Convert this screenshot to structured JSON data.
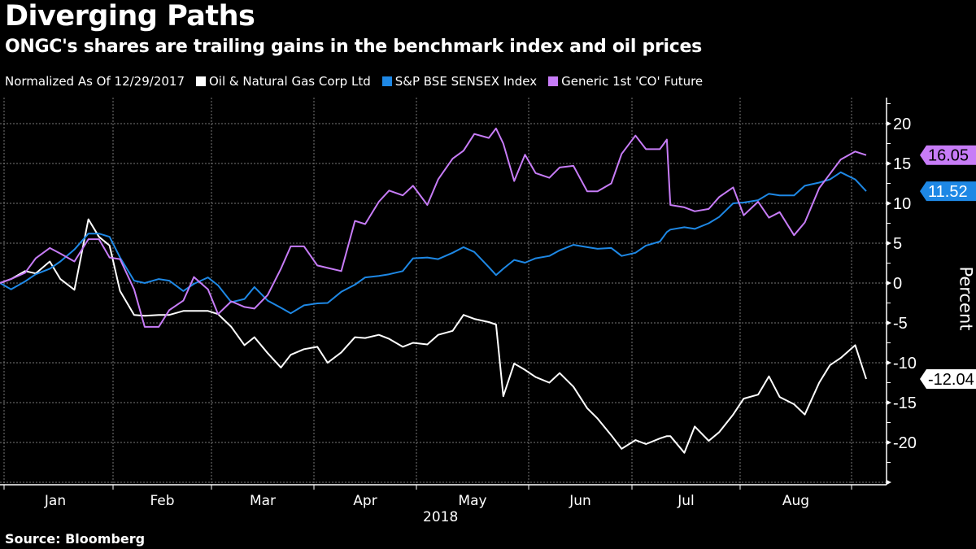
{
  "header": {
    "title": "Diverging Paths",
    "subtitle": "ONGC's shares are trailing gains in the benchmark index and oil prices"
  },
  "footer": {
    "source": "Source: Bloomberg"
  },
  "chart_data": {
    "type": "line",
    "title": "Diverging Paths",
    "subtitle": "ONGC's shares are trailing gains in the benchmark index and oil prices",
    "legend_note": "Normalized As Of 12/29/2017",
    "ylabel": "Percent",
    "ylim": [
      -25,
      23
    ],
    "yticks": [
      20,
      15,
      10,
      5,
      0,
      -5,
      -10,
      -15,
      -20
    ],
    "ytick_labels": [
      "20",
      "15",
      "10",
      "5",
      "0",
      "-5",
      "-10",
      "-15",
      "-20"
    ],
    "y_axis_side": "right",
    "xtick_labels": [
      "Jan",
      "Feb",
      "Mar",
      "Apr",
      "May",
      "Jun",
      "Jul",
      "Aug"
    ],
    "xlabel_year": "2018",
    "grid": true,
    "legend_placement": "top-left",
    "x": [
      "2017-12-29",
      "2018-01-03",
      "2018-01-07",
      "2018-01-10",
      "2018-01-14",
      "2018-01-17",
      "2018-01-21",
      "2018-01-25",
      "2018-01-28",
      "2018-01-31",
      "2018-02-03",
      "2018-02-07",
      "2018-02-10",
      "2018-02-14",
      "2018-02-17",
      "2018-02-21",
      "2018-02-24",
      "2018-02-28",
      "2018-03-03",
      "2018-03-07",
      "2018-03-11",
      "2018-03-14",
      "2018-03-18",
      "2018-03-22",
      "2018-03-25",
      "2018-03-29",
      "2018-04-02",
      "2018-04-05",
      "2018-04-09",
      "2018-04-13",
      "2018-04-16",
      "2018-04-20",
      "2018-04-23",
      "2018-04-27",
      "2018-04-30",
      "2018-05-04",
      "2018-05-07",
      "2018-05-11",
      "2018-05-14",
      "2018-05-17",
      "2018-05-21",
      "2018-05-23",
      "2018-05-25",
      "2018-05-28",
      "2018-05-31",
      "2018-06-03",
      "2018-06-07",
      "2018-06-10",
      "2018-06-14",
      "2018-06-18",
      "2018-06-21",
      "2018-06-25",
      "2018-06-28",
      "2018-07-02",
      "2018-07-05",
      "2018-07-09",
      "2018-07-11",
      "2018-07-12",
      "2018-07-16",
      "2018-07-19",
      "2018-07-23",
      "2018-07-26",
      "2018-07-30",
      "2018-08-02",
      "2018-08-06",
      "2018-08-09",
      "2018-08-12",
      "2018-08-16",
      "2018-08-19",
      "2018-08-23",
      "2018-08-26",
      "2018-08-29",
      "2018-09-02",
      "2018-09-05"
    ],
    "series": [
      {
        "name": "Oil & Natural Gas Corp Ltd",
        "color": "#ffffff",
        "last_label": "-12.04",
        "label_text_color": "#000000",
        "values": [
          0,
          0.5,
          1.5,
          1.2,
          2.7,
          0.5,
          -0.85,
          8.0,
          5.8,
          4.7,
          -1.0,
          -4.0,
          -4.1,
          -4.0,
          -4.0,
          -3.5,
          -3.5,
          -3.5,
          -3.9,
          -5.5,
          -7.8,
          -6.8,
          -8.8,
          -10.6,
          -9.0,
          -8.3,
          -8.0,
          -10.0,
          -8.7,
          -6.8,
          -6.9,
          -6.5,
          -7.0,
          -8.0,
          -7.5,
          -7.7,
          -6.5,
          -6.0,
          -4.0,
          -4.5,
          -4.9,
          -5.2,
          -14.2,
          -10.1,
          -10.9,
          -11.8,
          -12.5,
          -11.3,
          -13.0,
          -15.7,
          -17.0,
          -19.1,
          -20.8,
          -19.7,
          -20.2,
          -19.5,
          -19.2,
          -19.2,
          -21.3,
          -18.0,
          -19.8,
          -18.7,
          -16.5,
          -14.5,
          -14.0,
          -11.7,
          -14.3,
          -15.2,
          -16.5,
          -12.5,
          -10.3,
          -9.4,
          -7.8,
          -12.04
        ]
      },
      {
        "name": "S&P BSE SENSEX Index",
        "color": "#1e88e5",
        "last_label": "11.52",
        "label_text_color": "#ffffff",
        "values": [
          0,
          -0.8,
          0.2,
          1.1,
          1.8,
          2.7,
          4.2,
          6.2,
          6.2,
          5.8,
          3.2,
          0.3,
          0,
          0.5,
          0.3,
          -1.0,
          -0.1,
          0.7,
          -0.3,
          -2.4,
          -2.0,
          -0.5,
          -2.2,
          -3.1,
          -3.8,
          -2.8,
          -2.55,
          -2.5,
          -1.1,
          -0.2,
          0.7,
          0.9,
          1.1,
          1.5,
          3.1,
          3.2,
          3.0,
          3.8,
          4.5,
          3.9,
          2.0,
          1.0,
          1.8,
          2.9,
          2.55,
          3.1,
          3.4,
          4.1,
          4.8,
          4.5,
          4.3,
          4.4,
          3.4,
          3.8,
          4.7,
          5.2,
          6.4,
          6.7,
          7.0,
          6.8,
          7.5,
          8.3,
          10.0,
          10.1,
          10.4,
          11.2,
          11.0,
          11.0,
          12.2,
          12.6,
          13.0,
          13.9,
          13.0,
          11.52
        ]
      },
      {
        "name": "Generic 1st 'CO' Future",
        "color": "#c77cf7",
        "last_label": "16.05",
        "label_text_color": "#000000",
        "values": [
          0,
          0.5,
          1.3,
          3.1,
          4.4,
          3.7,
          2.7,
          5.5,
          5.5,
          3.2,
          3.0,
          -0.8,
          -5.5,
          -5.5,
          -3.4,
          -2.2,
          0.75,
          -0.8,
          -3.9,
          -2.3,
          -3.0,
          -3.2,
          -1.5,
          1.8,
          4.6,
          4.6,
          2.2,
          1.9,
          1.5,
          7.8,
          7.4,
          10.2,
          11.6,
          11.0,
          12.2,
          9.8,
          13.0,
          15.6,
          16.6,
          18.7,
          18.2,
          19.4,
          17.5,
          12.8,
          16.1,
          13.8,
          13.2,
          14.5,
          14.7,
          11.5,
          11.5,
          12.5,
          16.2,
          18.5,
          16.8,
          16.8,
          18.0,
          9.8,
          9.5,
          9.0,
          9.3,
          10.8,
          12.0,
          8.5,
          10.2,
          8.2,
          8.9,
          6.0,
          7.6,
          11.9,
          13.7,
          15.5,
          16.5,
          16.05
        ]
      }
    ]
  }
}
